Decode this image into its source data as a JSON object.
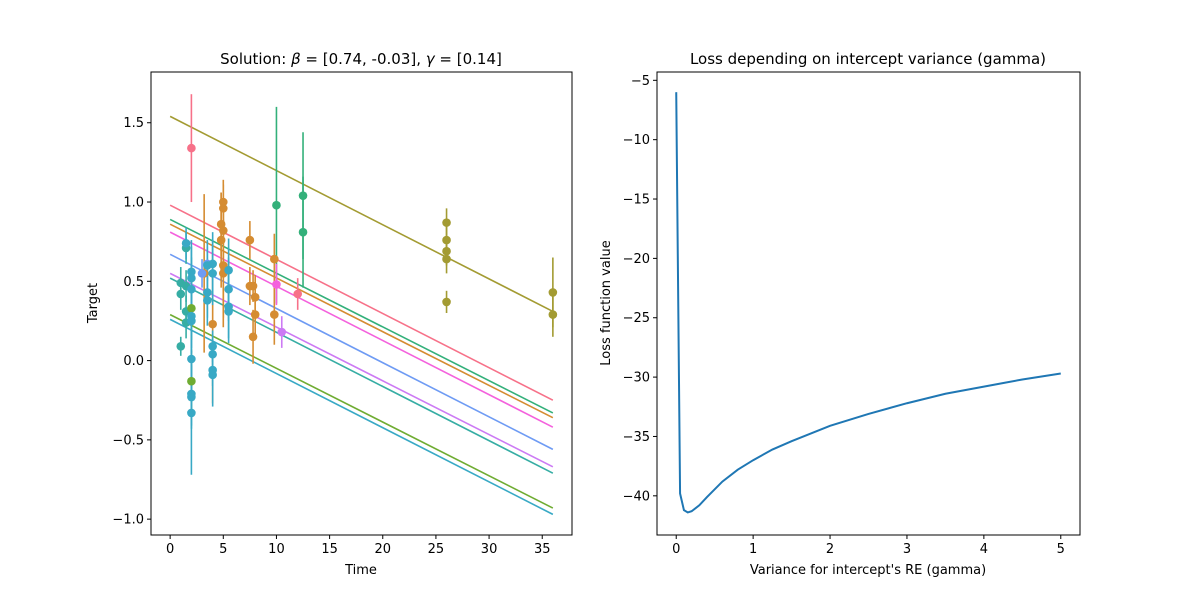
{
  "chart_data": [
    {
      "type": "scatter",
      "title_prefix": "Solution: ",
      "title_beta": "β",
      "title_mid": " = [0.74, -0.03], ",
      "title_gamma": "γ",
      "title_suffix": " = [0.14]",
      "xlabel": "Time",
      "ylabel": "Target",
      "xlim": [
        -1.8,
        37.8
      ],
      "ylim": [
        -1.1,
        1.82
      ],
      "xticks": [
        0,
        5,
        10,
        15,
        20,
        25,
        30,
        35
      ],
      "yticks": [
        -1.0,
        -0.5,
        0.0,
        0.5,
        1.0,
        1.5
      ],
      "ytick_labels": [
        "−1.0",
        "−0.5",
        "0.0",
        "0.5",
        "1.0",
        "1.5"
      ],
      "grid": false,
      "lines": [
        {
          "color": "#f77189",
          "y0": 0.98,
          "y1": -0.25
        },
        {
          "color": "#a39b32",
          "y0": 1.54,
          "y1": 0.31
        },
        {
          "color": "#d58c32",
          "y0": 0.86,
          "y1": -0.36
        },
        {
          "color": "#33b07a",
          "y0": 0.89,
          "y1": -0.33
        },
        {
          "color": "#f461dd",
          "y0": 0.81,
          "y1": -0.42
        },
        {
          "color": "#6e9bf4",
          "y0": 0.67,
          "y1": -0.56
        },
        {
          "color": "#cc7af4",
          "y0": 0.55,
          "y1": -0.67
        },
        {
          "color": "#36ada4",
          "y0": 0.52,
          "y1": -0.71
        },
        {
          "color": "#6fac32",
          "y0": 0.29,
          "y1": -0.93
        },
        {
          "color": "#38a9c5",
          "y0": 0.26,
          "y1": -0.97
        }
      ],
      "points": [
        {
          "x": 2.0,
          "y": 1.34,
          "err": 0.34,
          "color": "#f77189"
        },
        {
          "x": 12.0,
          "y": 0.42,
          "err": 0.1,
          "color": "#f77189"
        },
        {
          "x": 26.0,
          "y": 0.87,
          "err": 0.09,
          "color": "#a39b32"
        },
        {
          "x": 26.0,
          "y": 0.76,
          "err": 0.09,
          "color": "#a39b32"
        },
        {
          "x": 26.0,
          "y": 0.69,
          "err": 0.09,
          "color": "#a39b32"
        },
        {
          "x": 26.0,
          "y": 0.64,
          "err": 0.09,
          "color": "#a39b32"
        },
        {
          "x": 26.0,
          "y": 0.37,
          "err": 0.07,
          "color": "#a39b32"
        },
        {
          "x": 36.0,
          "y": 0.43,
          "err": 0.22,
          "color": "#a39b32"
        },
        {
          "x": 36.0,
          "y": 0.29,
          "err": 0.14,
          "color": "#a39b32"
        },
        {
          "x": 5.0,
          "y": 1.0,
          "err": 0.14,
          "color": "#d58c32"
        },
        {
          "x": 5.0,
          "y": 0.96,
          "err": 0.15,
          "color": "#d58c32"
        },
        {
          "x": 4.8,
          "y": 0.86,
          "err": 0.2,
          "color": "#d58c32"
        },
        {
          "x": 5.0,
          "y": 0.82,
          "err": 0.2,
          "color": "#d58c32"
        },
        {
          "x": 4.8,
          "y": 0.76,
          "err": 0.3,
          "color": "#d58c32"
        },
        {
          "x": 5.0,
          "y": 0.6,
          "err": 0.33,
          "color": "#d58c32"
        },
        {
          "x": 5.0,
          "y": 0.55,
          "err": 0.34,
          "color": "#d58c32"
        },
        {
          "x": 3.2,
          "y": 0.55,
          "err": 0.5,
          "color": "#d58c32"
        },
        {
          "x": 4.0,
          "y": 0.23,
          "err": 0.5,
          "color": "#d58c32"
        },
        {
          "x": 7.5,
          "y": 0.76,
          "err": 0.12,
          "color": "#d58c32"
        },
        {
          "x": 7.5,
          "y": 0.47,
          "err": 0.12,
          "color": "#d58c32"
        },
        {
          "x": 7.8,
          "y": 0.47,
          "err": 0.1,
          "color": "#d58c32"
        },
        {
          "x": 8.0,
          "y": 0.4,
          "err": 0.14,
          "color": "#d58c32"
        },
        {
          "x": 8.0,
          "y": 0.29,
          "err": 0.14,
          "color": "#d58c32"
        },
        {
          "x": 7.8,
          "y": 0.15,
          "err": 0.17,
          "color": "#d58c32"
        },
        {
          "x": 9.8,
          "y": 0.64,
          "err": 0.16,
          "color": "#d58c32"
        },
        {
          "x": 9.8,
          "y": 0.29,
          "err": 0.19,
          "color": "#d58c32"
        },
        {
          "x": 10.0,
          "y": 0.98,
          "err": 0.62,
          "color": "#33b07a"
        },
        {
          "x": 12.5,
          "y": 1.04,
          "err": 0.4,
          "color": "#33b07a"
        },
        {
          "x": 12.5,
          "y": 0.81,
          "err": 0.35,
          "color": "#33b07a"
        },
        {
          "x": 10.0,
          "y": 0.48,
          "err": 0.13,
          "color": "#f461dd"
        },
        {
          "x": 3.5,
          "y": 0.61,
          "err": 0.11,
          "color": "#6e9bf4"
        },
        {
          "x": 3.0,
          "y": 0.55,
          "err": 0.09,
          "color": "#6e9bf4"
        },
        {
          "x": 10.5,
          "y": 0.18,
          "err": 0.1,
          "color": "#cc7af4"
        },
        {
          "x": 1.0,
          "y": 0.49,
          "err": 0.1,
          "color": "#36ada4"
        },
        {
          "x": 1.0,
          "y": 0.42,
          "err": 0.1,
          "color": "#36ada4"
        },
        {
          "x": 1.0,
          "y": 0.09,
          "err": 0.06,
          "color": "#36ada4"
        },
        {
          "x": 1.5,
          "y": 0.71,
          "err": 0.1,
          "color": "#36ada4"
        },
        {
          "x": 1.5,
          "y": 0.47,
          "err": 0.1,
          "color": "#36ada4"
        },
        {
          "x": 1.5,
          "y": 0.31,
          "err": 0.1,
          "color": "#36ada4"
        },
        {
          "x": 1.5,
          "y": 0.24,
          "err": 0.1,
          "color": "#36ada4"
        },
        {
          "x": 2.0,
          "y": 0.33,
          "err": 0.2,
          "color": "#6fac32"
        },
        {
          "x": 2.0,
          "y": -0.13,
          "err": 0.2,
          "color": "#6fac32"
        },
        {
          "x": 1.5,
          "y": 0.74,
          "err": 0.1,
          "color": "#38a9c5"
        },
        {
          "x": 2.0,
          "y": 0.56,
          "err": 0.2,
          "color": "#38a9c5"
        },
        {
          "x": 2.0,
          "y": 0.52,
          "err": 0.2,
          "color": "#38a9c5"
        },
        {
          "x": 2.0,
          "y": 0.45,
          "err": 0.2,
          "color": "#38a9c5"
        },
        {
          "x": 2.0,
          "y": 0.28,
          "err": 0.2,
          "color": "#38a9c5"
        },
        {
          "x": 2.0,
          "y": 0.25,
          "err": 0.2,
          "color": "#38a9c5"
        },
        {
          "x": 2.0,
          "y": 0.01,
          "err": 0.2,
          "color": "#38a9c5"
        },
        {
          "x": 2.0,
          "y": -0.21,
          "err": 0.2,
          "color": "#38a9c5"
        },
        {
          "x": 2.0,
          "y": -0.23,
          "err": 0.2,
          "color": "#38a9c5"
        },
        {
          "x": 2.0,
          "y": -0.33,
          "err": 0.39,
          "color": "#38a9c5"
        },
        {
          "x": 3.5,
          "y": 0.6,
          "err": 0.16,
          "color": "#38a9c5"
        },
        {
          "x": 3.5,
          "y": 0.43,
          "err": 0.16,
          "color": "#38a9c5"
        },
        {
          "x": 3.5,
          "y": 0.38,
          "err": 0.16,
          "color": "#38a9c5"
        },
        {
          "x": 4.0,
          "y": 0.61,
          "err": 0.2,
          "color": "#38a9c5"
        },
        {
          "x": 4.0,
          "y": 0.55,
          "err": 0.2,
          "color": "#38a9c5"
        },
        {
          "x": 4.0,
          "y": 0.09,
          "err": 0.1,
          "color": "#38a9c5"
        },
        {
          "x": 4.0,
          "y": 0.04,
          "err": 0.1,
          "color": "#38a9c5"
        },
        {
          "x": 4.0,
          "y": -0.06,
          "err": 0.1,
          "color": "#38a9c5"
        },
        {
          "x": 4.0,
          "y": -0.09,
          "err": 0.2,
          "color": "#38a9c5"
        },
        {
          "x": 5.5,
          "y": 0.57,
          "err": 0.2,
          "color": "#38a9c5"
        },
        {
          "x": 5.5,
          "y": 0.45,
          "err": 0.2,
          "color": "#38a9c5"
        },
        {
          "x": 5.5,
          "y": 0.34,
          "err": 0.2,
          "color": "#38a9c5"
        },
        {
          "x": 5.5,
          "y": 0.31,
          "err": 0.2,
          "color": "#38a9c5"
        }
      ]
    },
    {
      "type": "line",
      "title": "Loss depending on intercept variance (gamma)",
      "xlabel": "Variance for intercept's RE (gamma)",
      "ylabel": "Loss function value",
      "xlim": [
        -0.25,
        5.25
      ],
      "ylim": [
        -43.3,
        -4.3
      ],
      "xticks": [
        0,
        1,
        2,
        3,
        4,
        5
      ],
      "yticks": [
        -40,
        -35,
        -30,
        -25,
        -20,
        -15,
        -10,
        -5
      ],
      "ytick_labels": [
        "−40",
        "−35",
        "−30",
        "−25",
        "−20",
        "−15",
        "−10",
        "−5"
      ],
      "grid": false,
      "color": "#1f77b4",
      "x": [
        0.0,
        0.05,
        0.1,
        0.15,
        0.2,
        0.3,
        0.4,
        0.6,
        0.8,
        1.0,
        1.25,
        1.5,
        2.0,
        2.5,
        3.0,
        3.5,
        4.0,
        4.5,
        5.0
      ],
      "y": [
        -6.0,
        -39.8,
        -41.2,
        -41.4,
        -41.3,
        -40.8,
        -40.1,
        -38.8,
        -37.8,
        -37.0,
        -36.1,
        -35.4,
        -34.1,
        -33.1,
        -32.2,
        -31.4,
        -30.8,
        -30.2,
        -29.7
      ]
    }
  ]
}
